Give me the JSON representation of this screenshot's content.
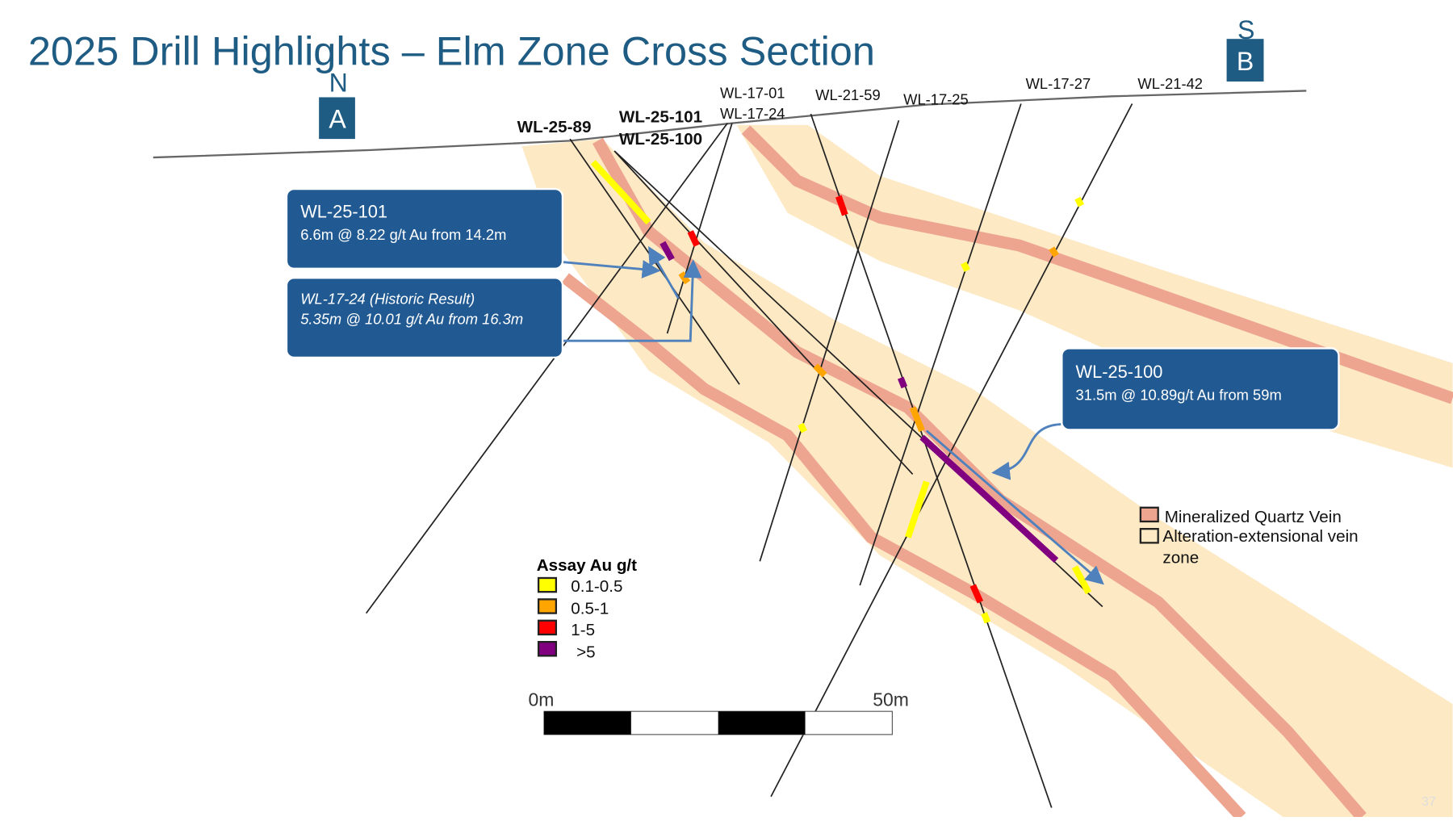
{
  "title": "2025 Drill Highlights – Elm Zone Cross Section",
  "section_ends": [
    {
      "direction": "N",
      "label": "A"
    },
    {
      "direction": "S",
      "label": "B"
    }
  ],
  "drill_holes": [
    "WL-25-89",
    "WL-25-101",
    "WL-25-100",
    "WL-17-01",
    "WL-17-24",
    "WL-21-59",
    "WL-17-25",
    "WL-17-27",
    "WL-21-42"
  ],
  "callouts": [
    {
      "hole": "WL-25-101",
      "result": "6.6m @ 8.22 g/t Au from 14.2m"
    },
    {
      "hole": "WL-17-24 (Historic Result)",
      "result": "5.35m @ 10.01 g/t Au from 16.3m"
    },
    {
      "hole": "WL-25-100",
      "result": "31.5m @ 10.89g/t Au from 59m"
    }
  ],
  "assay_legend": {
    "title": "Assay Au g/t",
    "items": [
      {
        "label": "0.1-0.5",
        "color": "#ffff00"
      },
      {
        "label": "0.5-1",
        "color": "#ffa500"
      },
      {
        "label": "1-5",
        "color": "#ff0000"
      },
      {
        "label": ">5",
        "color": "#800080"
      }
    ]
  },
  "zone_legend": [
    {
      "label": "Mineralized Quartz Vein",
      "color": "#eea58f"
    },
    {
      "label": "Alteration-extensional vein zone",
      "color": "#fde9c4"
    }
  ],
  "scale_bar": {
    "start": "0m",
    "end": "50m"
  },
  "page_number": "37"
}
